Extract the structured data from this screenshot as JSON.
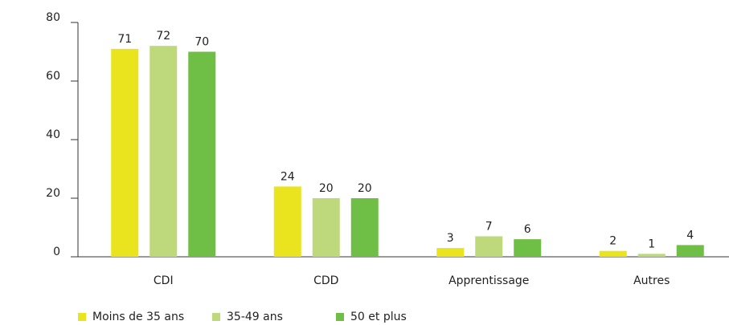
{
  "chart_data": {
    "type": "bar",
    "categories": [
      "CDI",
      "CDD",
      "Apprentissage",
      "Autres"
    ],
    "series": [
      {
        "name": "Moins de 35 ans",
        "color": "#e9e41e",
        "values": [
          71,
          24,
          3,
          2
        ]
      },
      {
        "name": "35-49 ans",
        "color": "#bdd97b",
        "values": [
          72,
          20,
          7,
          1
        ]
      },
      {
        "name": "50 et plus",
        "color": "#6fbe45",
        "values": [
          70,
          20,
          6,
          4
        ]
      }
    ],
    "ylim": [
      0,
      80
    ],
    "yticks": [
      0,
      20,
      40,
      60,
      80
    ],
    "grid": false,
    "legend": "bottom"
  }
}
